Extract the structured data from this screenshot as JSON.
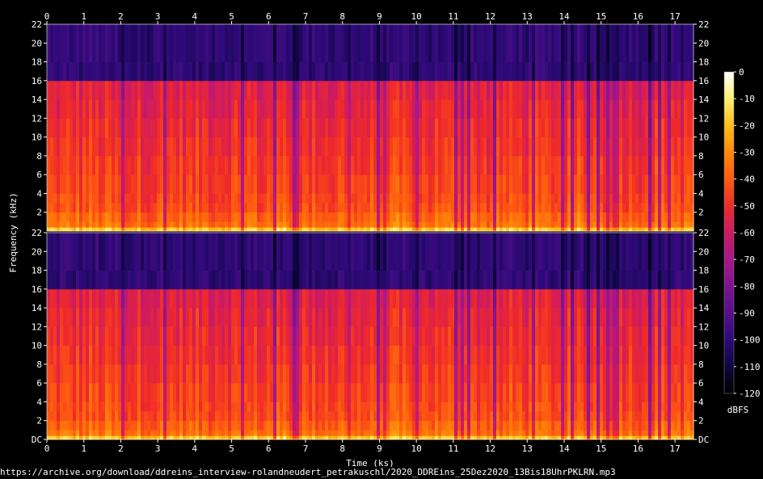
{
  "chart_data": {
    "type": "heatmap",
    "subtype": "spectrogram",
    "channels": 2,
    "xlabel": "Time (ks)",
    "ylabel": "Frequency (kHz)",
    "x_ticks": [
      "0",
      "1",
      "2",
      "3",
      "4",
      "5",
      "6",
      "7",
      "8",
      "9",
      "10",
      "11",
      "12",
      "13",
      "14",
      "15",
      "16",
      "17"
    ],
    "x_range_ks": [
      0,
      17.5
    ],
    "y_ticks_top": [
      "22",
      "20",
      "18",
      "16",
      "14",
      "12",
      "10",
      "8",
      "6",
      "4",
      "2"
    ],
    "y_ticks_bottom": [
      "22",
      "20",
      "18",
      "16",
      "14",
      "12",
      "10",
      "8",
      "6",
      "4",
      "2",
      "DC"
    ],
    "y_range_khz": [
      0,
      22
    ],
    "lowpass_cutoff_khz": 16,
    "colorbar": {
      "label": "dBFS",
      "ticks": [
        "0",
        "-10",
        "-20",
        "-30",
        "-40",
        "-50",
        "-60",
        "-70",
        "-80",
        "-90",
        "-100",
        "-110",
        "-120"
      ],
      "range_db": [
        -120,
        0
      ],
      "colors": [
        "#000000",
        "#0e0640",
        "#2e0a78",
        "#55108a",
        "#7f1490",
        "#a8178a",
        "#cc1a63",
        "#ef2a2a",
        "#fe5a10",
        "#ff8a08",
        "#ffbe18",
        "#fff070",
        "#ffffff"
      ]
    }
  },
  "source_url": "https://archive.org/download/ddreins_interview-rolandneudert_petrakuschl/2020_DDREins_25Dez2020_13Bis18UhrPKLRN.mp3"
}
